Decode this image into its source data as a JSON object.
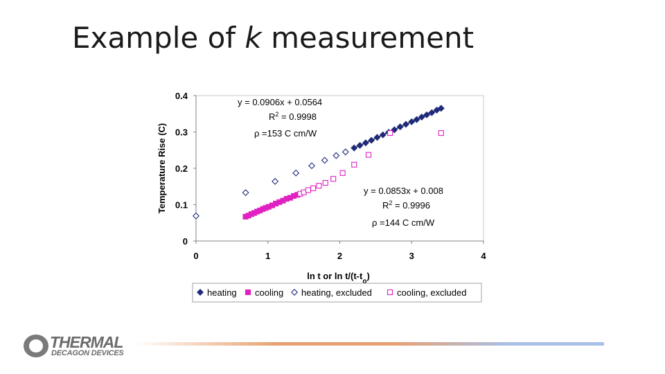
{
  "slide": {
    "title_pre": "Example of ",
    "title_italic": "k",
    "title_post": " measurement"
  },
  "logo": {
    "line1": "THERMAL",
    "line2": "DECAGON DEVICES"
  },
  "colors": {
    "heating": "#1f2a7a",
    "cooling": "#e020c0",
    "fit_line": "#000000",
    "bar_start": "#e8a070",
    "bar_end": "#a8c0e8"
  },
  "chart_data": {
    "type": "scatter",
    "xlabel_main": "ln t or ln t/(t-t",
    "xlabel_sub": "o",
    "xlabel_end": ")",
    "ylabel": "Temperature Rise (C)",
    "xlim": [
      0,
      4
    ],
    "ylim": [
      0,
      0.4
    ],
    "xticks": [
      "0",
      "1",
      "2",
      "3",
      "4"
    ],
    "yticks": [
      "0",
      "0.1",
      "0.2",
      "0.3",
      "0.4"
    ],
    "grid": false,
    "legend_position": "bottom",
    "annotations": {
      "heating_eq": "y = 0.0906x + 0.0564",
      "heating_r2_pre": "R",
      "heating_r2_sup": "2",
      "heating_r2_post": " = 0.9998",
      "heating_rho_symbol": "ρ",
      "heating_rho": "=153 C cm/W",
      "cooling_eq": "y = 0.0853x + 0.008",
      "cooling_r2_pre": "R",
      "cooling_r2_sup": "2",
      "cooling_r2_post": " = 0.9996",
      "cooling_rho_symbol": "ρ",
      "cooling_rho": "=144 C cm/W"
    },
    "series": [
      {
        "name": "heating",
        "marker": "diamond-filled",
        "x": [
          2.2,
          2.28,
          2.36,
          2.44,
          2.52,
          2.6,
          2.68,
          2.76,
          2.84,
          2.92,
          3.0,
          3.07,
          3.14,
          3.21,
          3.28,
          3.35,
          3.41
        ],
        "y": [
          0.256,
          0.263,
          0.27,
          0.277,
          0.285,
          0.292,
          0.299,
          0.306,
          0.314,
          0.321,
          0.328,
          0.334,
          0.341,
          0.347,
          0.353,
          0.36,
          0.365
        ]
      },
      {
        "name": "cooling",
        "marker": "square-filled",
        "x": [
          0.69,
          0.73,
          0.77,
          0.81,
          0.85,
          0.89,
          0.93,
          0.97,
          1.01,
          1.06,
          1.11,
          1.16,
          1.21,
          1.26,
          1.31,
          1.36,
          1.41
        ],
        "y": [
          0.067,
          0.07,
          0.074,
          0.077,
          0.081,
          0.084,
          0.088,
          0.091,
          0.094,
          0.098,
          0.103,
          0.107,
          0.111,
          0.116,
          0.119,
          0.124,
          0.127
        ]
      },
      {
        "name": "heating, excluded",
        "marker": "diamond-open",
        "x": [
          0.0,
          0.69,
          1.1,
          1.39,
          1.61,
          1.79,
          1.95,
          2.08
        ],
        "y": [
          0.069,
          0.133,
          0.164,
          0.187,
          0.207,
          0.222,
          0.235,
          0.245
        ]
      },
      {
        "name": "cooling, excluded",
        "marker": "square-open",
        "x": [
          1.45,
          1.5,
          1.56,
          1.63,
          1.71,
          1.8,
          1.91,
          2.04,
          2.2,
          2.4,
          2.7,
          3.41
        ],
        "y": [
          0.13,
          0.134,
          0.14,
          0.145,
          0.152,
          0.16,
          0.171,
          0.187,
          0.21,
          0.237,
          0.297,
          0.297
        ]
      }
    ],
    "fits": [
      {
        "series": "heating",
        "slope": 0.0906,
        "intercept": 0.0564,
        "x_range": [
          2.2,
          3.41
        ]
      },
      {
        "series": "cooling",
        "slope": 0.0853,
        "intercept": 0.008,
        "x_range": [
          0.69,
          1.41
        ]
      }
    ]
  }
}
